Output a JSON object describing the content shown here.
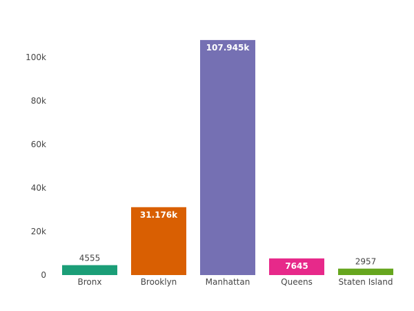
{
  "chart_data": {
    "type": "bar",
    "categories": [
      "Bronx",
      "Brooklyn",
      "Manhattan",
      "Queens",
      "Staten Island"
    ],
    "values": [
      4555,
      31176,
      107945,
      7645,
      2957
    ],
    "data_labels": [
      "4555",
      "31.176k",
      "107.945k",
      "7645",
      "2957"
    ],
    "colors": [
      "#1b9e77",
      "#d95f02",
      "#7570b3",
      "#e7298a",
      "#66a61e"
    ],
    "label_positions": [
      "outside",
      "inside",
      "inside",
      "inside",
      "outside"
    ],
    "y_ticks": [
      0,
      20000,
      40000,
      60000,
      80000,
      100000
    ],
    "y_tick_labels": [
      "0",
      "20k",
      "40k",
      "60k",
      "80k",
      "100k"
    ],
    "ylim": [
      0,
      113626
    ],
    "grid": false,
    "legend": false
  }
}
